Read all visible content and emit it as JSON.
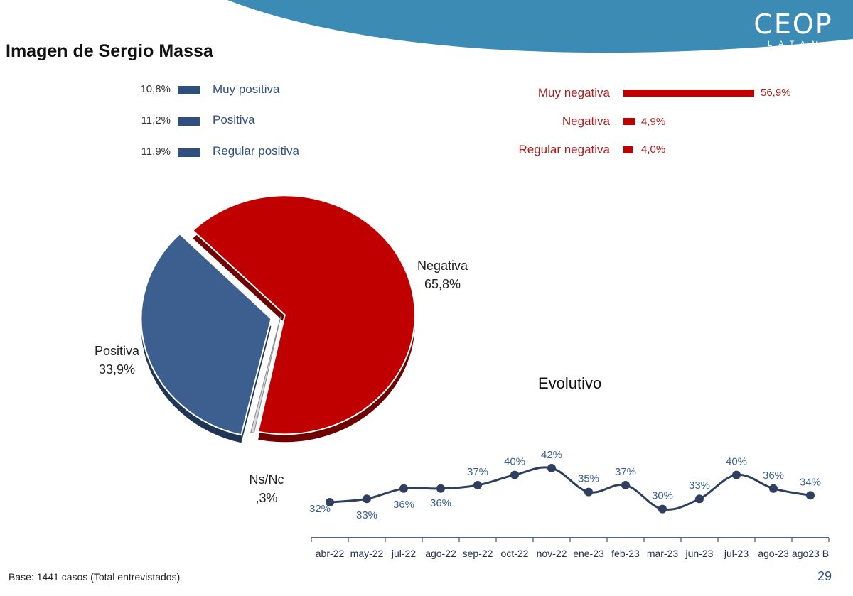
{
  "title": "Imagen de Sergio Massa",
  "logo": {
    "main": "CEOP",
    "sub": "LATAM"
  },
  "positive_breakdown": [
    {
      "label": "Muy positiva",
      "value": "10,8%",
      "num": 10.8
    },
    {
      "label": "Positiva",
      "value": "11,2%",
      "num": 11.2
    },
    {
      "label": "Regular positiva",
      "value": "11,9%",
      "num": 11.9
    }
  ],
  "negative_breakdown": [
    {
      "label": "Muy negativa",
      "value": "56,9%",
      "num": 56.9
    },
    {
      "label": "Negativa",
      "value": "4,9%",
      "num": 4.9
    },
    {
      "label": "Regular negativa",
      "value": "4,0%",
      "num": 4.0
    }
  ],
  "pie_labels": {
    "negativa": {
      "name": "Negativa",
      "value": "65,8%"
    },
    "positiva": {
      "name": "Positiva",
      "value": "33,9%"
    },
    "nsnc": {
      "name": "Ns/Nc",
      "value": ",3%"
    }
  },
  "evolutivo_title": "Evolutivo",
  "footer": "Base: 1441 casos (Total entrevistados)",
  "page_number": "29",
  "colors": {
    "positive": "#3c5f8f",
    "negative": "#c00000",
    "line": "#2f3f5f",
    "header": "#3b8bb5"
  },
  "chart_data": [
    {
      "type": "pie",
      "title": "Imagen de Sergio Massa",
      "slices": [
        {
          "label": "Negativa",
          "value": 65.8
        },
        {
          "label": "Positiva",
          "value": 33.9
        },
        {
          "label": "Ns/Nc",
          "value": 0.3
        }
      ]
    },
    {
      "type": "line",
      "title": "Evolutivo",
      "categories": [
        "abr-22",
        "may-22",
        "jul-22",
        "ago-22",
        "sep-22",
        "oct-22",
        "nov-22",
        "ene-23",
        "feb-23",
        "mar-23",
        "jun-23",
        "jul-23",
        "ago-23",
        "ago23 B"
      ],
      "values": [
        32,
        33,
        36,
        36,
        37,
        40,
        42,
        35,
        37,
        30,
        33,
        40,
        36,
        34
      ],
      "value_labels": [
        "32%",
        "33%",
        "36%",
        "36%",
        "37%",
        "40%",
        "42%",
        "35%",
        "37%",
        "30%",
        "33%",
        "40%",
        "36%",
        "34%"
      ]
    }
  ]
}
